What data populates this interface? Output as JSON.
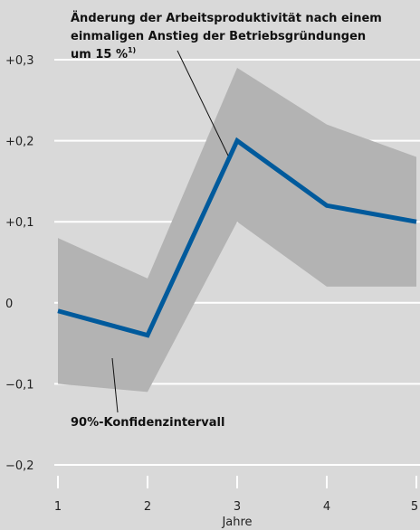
{
  "chart_data": {
    "type": "line",
    "x": [
      1,
      2,
      3,
      4,
      5
    ],
    "series": [
      {
        "name": "Änderung der Arbeitsproduktivität nach einem einmaligen Anstieg der Betriebsgründungen um 15 %",
        "values": [
          -0.01,
          -0.04,
          0.2,
          0.12,
          0.1
        ],
        "color": "#005a9c"
      }
    ],
    "confidence_band": {
      "label": "90%-Konfidenzintervall",
      "lower": [
        -0.1,
        -0.11,
        0.1,
        0.02,
        0.02
      ],
      "upper": [
        0.08,
        0.03,
        0.29,
        0.22,
        0.18
      ],
      "color": "#b3b3b3"
    },
    "xlabel": "Jahre",
    "x_ticks": [
      "1",
      "2",
      "3",
      "4",
      "5"
    ],
    "y_ticks": [
      "+0,3",
      "+0,2",
      "+0,1",
      "0",
      "−0,1",
      "−0,2"
    ],
    "y_tick_values": [
      0.3,
      0.2,
      0.1,
      0,
      -0.1,
      -0.2
    ],
    "xlim": [
      1,
      5
    ],
    "ylim": [
      -0.2,
      0.3
    ],
    "grid": true,
    "annotation_line1": "Änderung der Arbeitsproduktivität nach einem",
    "annotation_line2": "einmaligen Anstieg der Betriebsgründungen",
    "annotation_line3": "um 15 %",
    "annotation_footnote": "1)",
    "background_color": "#d9d9d9",
    "grid_color": "#ffffff"
  }
}
